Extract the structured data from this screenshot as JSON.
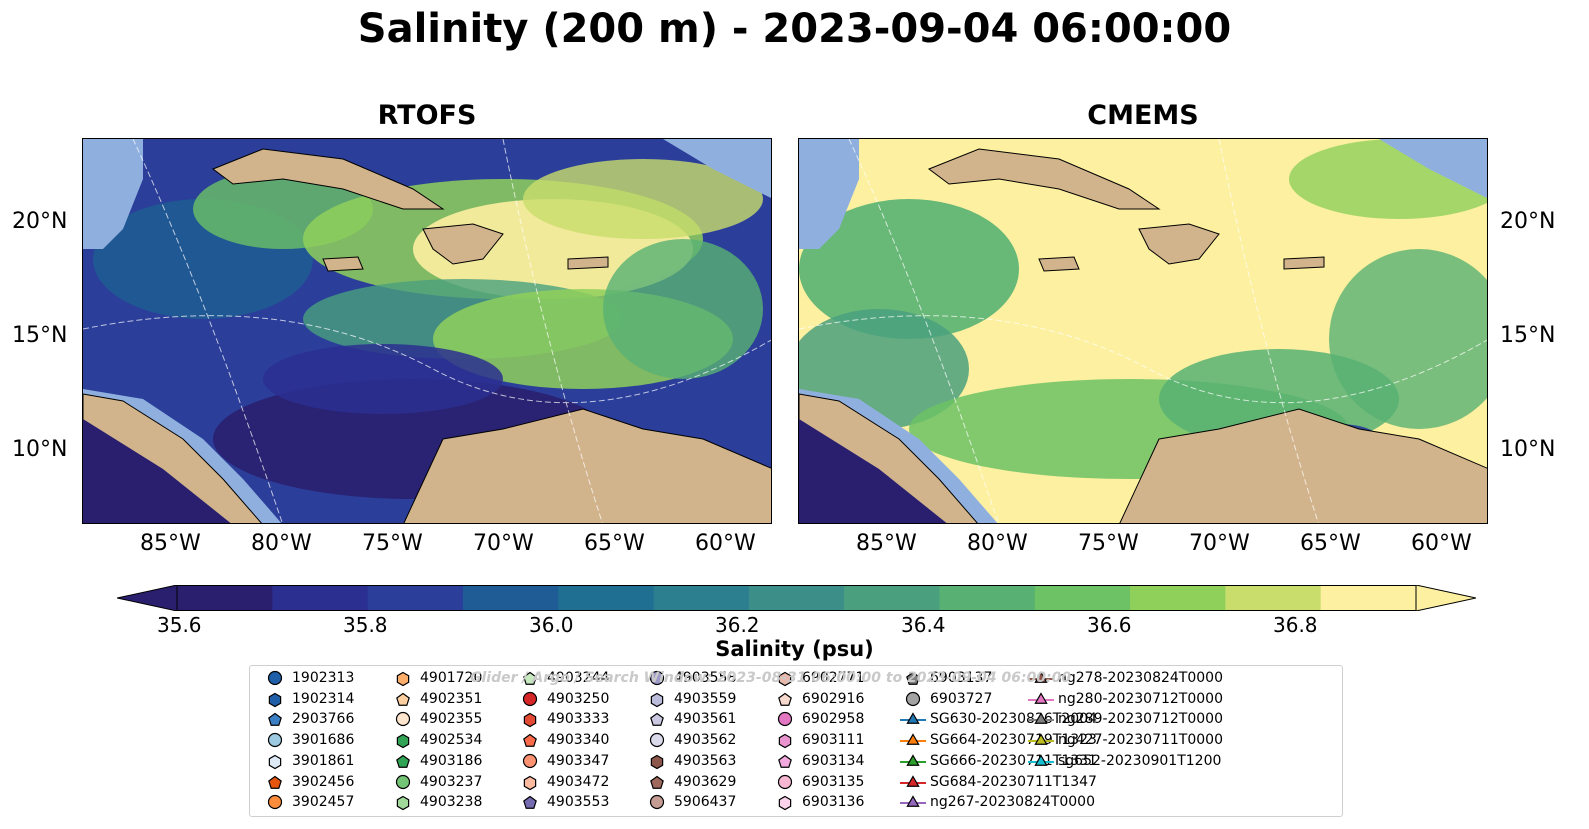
{
  "title": "Salinity (200 m) - 2023-09-04 06:00:00",
  "panels": [
    {
      "title": "RTOFS"
    },
    {
      "title": "CMEMS"
    }
  ],
  "lat_labels": [
    "20°N",
    "15°N",
    "10°N"
  ],
  "lon_labels": [
    "85°W",
    "80°W",
    "75°W",
    "70°W",
    "65°W",
    "60°W"
  ],
  "colorbar": {
    "ticks": [
      "35.6",
      "35.8",
      "36.0",
      "36.2",
      "36.4",
      "36.6",
      "36.8"
    ],
    "label": "Salinity (psu)",
    "colors": [
      "#2a1f6e",
      "#2b2f90",
      "#2a3e9a",
      "#1f5b94",
      "#1e6f91",
      "#2c7f8f",
      "#3b8f88",
      "#4aa07e",
      "#58b173",
      "#6cc265",
      "#8fd05b",
      "#c9dd6c",
      "#fdf0a0"
    ]
  },
  "watermark": "Glider / Argo / Search Window: 2023-08-31 06:00:00 to 2023-09-04 06:00:00",
  "legend": [
    {
      "label": "1902313",
      "marker": "circle",
      "color": "#1f5fa8"
    },
    {
      "label": "1902314",
      "marker": "hexagon",
      "color": "#1f5fa8"
    },
    {
      "label": "2903766",
      "marker": "pentagon",
      "color": "#3a7fc4"
    },
    {
      "label": "3901686",
      "marker": "circle",
      "color": "#9ecae1"
    },
    {
      "label": "3901861",
      "marker": "hexagon",
      "color": "#deebf7"
    },
    {
      "label": "3902456",
      "marker": "pentagon",
      "color": "#e6550d"
    },
    {
      "label": "3902457",
      "marker": "circle",
      "color": "#fd8d3c"
    },
    {
      "label": "4901720",
      "marker": "hexagon",
      "color": "#fdae6b"
    },
    {
      "label": "4902351",
      "marker": "pentagon",
      "color": "#fdd0a2"
    },
    {
      "label": "4902355",
      "marker": "circle",
      "color": "#fee6ce"
    },
    {
      "label": "4902534",
      "marker": "hexagon",
      "color": "#31a354"
    },
    {
      "label": "4903186",
      "marker": "pentagon",
      "color": "#31a354"
    },
    {
      "label": "4903237",
      "marker": "circle",
      "color": "#74c476"
    },
    {
      "label": "4903238",
      "marker": "hexagon",
      "color": "#a1d99b"
    },
    {
      "label": "4903244",
      "marker": "pentagon",
      "color": "#c7e9c0"
    },
    {
      "label": "4903250",
      "marker": "circle",
      "color": "#d62728"
    },
    {
      "label": "4903333",
      "marker": "hexagon",
      "color": "#e34a33"
    },
    {
      "label": "4903340",
      "marker": "pentagon",
      "color": "#fb6a4a"
    },
    {
      "label": "4903347",
      "marker": "circle",
      "color": "#fc9272"
    },
    {
      "label": "4903472",
      "marker": "hexagon",
      "color": "#fcbba1"
    },
    {
      "label": "4903553",
      "marker": "pentagon",
      "color": "#756bb1"
    },
    {
      "label": "4903558",
      "marker": "circle",
      "color": "#9e9ac8"
    },
    {
      "label": "4903559",
      "marker": "hexagon",
      "color": "#bcbddc"
    },
    {
      "label": "4903561",
      "marker": "pentagon",
      "color": "#cbc9e2"
    },
    {
      "label": "4903562",
      "marker": "circle",
      "color": "#dadaeb"
    },
    {
      "label": "4903563",
      "marker": "hexagon",
      "color": "#8c564b"
    },
    {
      "label": "4903629",
      "marker": "pentagon",
      "color": "#a0695e"
    },
    {
      "label": "5906437",
      "marker": "circle",
      "color": "#c49c94"
    },
    {
      "label": "6902771",
      "marker": "hexagon",
      "color": "#e7b9ad"
    },
    {
      "label": "6902916",
      "marker": "pentagon",
      "color": "#f7d9ce"
    },
    {
      "label": "6902958",
      "marker": "circle",
      "color": "#e377c2"
    },
    {
      "label": "6903111",
      "marker": "hexagon",
      "color": "#e993cf"
    },
    {
      "label": "6903134",
      "marker": "pentagon",
      "color": "#f1a8dc"
    },
    {
      "label": "6903135",
      "marker": "circle",
      "color": "#f7b6d2"
    },
    {
      "label": "6903136",
      "marker": "hexagon",
      "color": "#fbd3ea"
    },
    {
      "label": "6903137",
      "marker": "pentagon",
      "color": "#7f7f7f"
    },
    {
      "label": "6903727",
      "marker": "circle",
      "color": "#a3a3a3"
    },
    {
      "label": "SG630-20230826T2004",
      "marker": "triangle",
      "color": "#1f77b4"
    },
    {
      "label": "SG664-20230719T1323",
      "marker": "triangle",
      "color": "#ff7f0e"
    },
    {
      "label": "SG666-20230711T1331",
      "marker": "triangle",
      "color": "#2ca02c"
    },
    {
      "label": "SG684-20230711T1347",
      "marker": "triangle",
      "color": "#d62728"
    },
    {
      "label": "ng267-20230824T0000",
      "marker": "triangle",
      "color": "#9467bd"
    },
    {
      "label": "ng278-20230824T0000",
      "marker": "triangle",
      "color": "#8c564b"
    },
    {
      "label": "ng280-20230712T0000",
      "marker": "triangle",
      "color": "#e377c2"
    },
    {
      "label": "ng289-20230712T0000",
      "marker": "triangle",
      "color": "#7f7f7f"
    },
    {
      "label": "ng427-20230711T0000",
      "marker": "triangle",
      "color": "#bcbd22"
    },
    {
      "label": "sg652-20230901T1200",
      "marker": "triangle",
      "color": "#17becf"
    }
  ]
}
